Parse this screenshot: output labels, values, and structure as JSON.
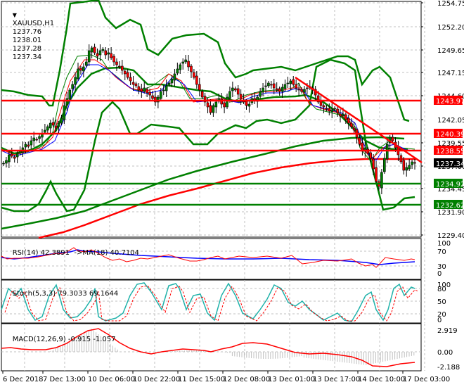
{
  "window": {
    "symbol_label": "XAUUSD,H1",
    "ohlc": {
      "open": "1237.76",
      "high": "1238.01",
      "low": "1237.28",
      "close": "1237.34"
    },
    "menu_icon": "triangle-down-icon"
  },
  "main_pane": {
    "price_ticks": [
      "1254.75",
      "1252.20",
      "1249.65",
      "1247.15",
      "1244.60",
      "1242.05",
      "1239.55",
      "1237.00",
      "1234.45",
      "1231.90",
      "1229.40"
    ],
    "levels": [
      {
        "value": "1243.97",
        "color": "#ff0000",
        "y": 143
      },
      {
        "value": "1240.39",
        "color": "#ff0000",
        "y": 190
      },
      {
        "value": "1238.55",
        "color": "#ff0000",
        "y": 214
      },
      {
        "value": "1234.92",
        "color": "#008000",
        "y": 261
      },
      {
        "value": "1232.62",
        "color": "#008000",
        "y": 291
      }
    ],
    "current_price": {
      "value": "1237.34",
      "color": "#000000",
      "y": 232
    }
  },
  "rsi_pane": {
    "label": "RSI(14) 42.3891",
    "ma_label": "->MA(18) 40.7104",
    "ticks": [
      "100",
      "70",
      "30",
      "0"
    ]
  },
  "stoch_pane": {
    "label": "Stoch(5,3,3) 79.3033 69.1644",
    "ticks": [
      "100",
      "80",
      "50",
      "20",
      "0"
    ]
  },
  "macd_pane": {
    "label": "MACD(12,26,9) -0.915 -1.057",
    "ticks": [
      "2.919",
      "0.00",
      "-2.188"
    ]
  },
  "time_axis": {
    "labels": [
      "6 Dec 2018",
      "7 Dec 13:00",
      "10 Dec 06:00",
      "10 Dec 22:00",
      "11 Dec 15:00",
      "12 Dec 08:00",
      "13 Dec 01:00",
      "13 Dec 17:00",
      "14 Dec 10:00",
      "17 Dec 03:00"
    ]
  },
  "colors": {
    "bull_candle": "#008000",
    "bear_candle": "#ff0000",
    "bollinger": "#008000",
    "ma_fast": "#008000",
    "ma_mid": "#ff0000",
    "ma_slow": "#0000ff",
    "sma200": "#008000",
    "sma_red_long": "#ff0000",
    "trendline": "#ff0000",
    "rsi": "#ff0000",
    "rsi_ma": "#0000ff",
    "stoch_main": "#20b2aa",
    "stoch_signal": "#ff0000",
    "macd_hist": "#c0c0c0",
    "macd_signal": "#ff0000",
    "grid": "#c0c0c0"
  },
  "chart_data": {
    "type": "candlestick",
    "title": "XAUUSD,H1",
    "symbol": "XAUUSD",
    "timeframe": "H1",
    "last_bar": {
      "open": 1237.76,
      "high": 1238.01,
      "low": 1237.28,
      "close": 1237.34
    },
    "x_tick_labels": [
      "6 Dec 2018",
      "7 Dec 13:00",
      "10 Dec 06:00",
      "10 Dec 22:00",
      "11 Dec 15:00",
      "12 Dec 08:00",
      "13 Dec 01:00",
      "13 Dec 17:00",
      "14 Dec 10:00",
      "17 Dec 03:00"
    ],
    "ylim": [
      1229.4,
      1254.75
    ],
    "y_tick_labels": [
      1254.75,
      1252.2,
      1249.65,
      1247.15,
      1244.6,
      1242.05,
      1239.55,
      1237.0,
      1234.45,
      1231.9,
      1229.4
    ],
    "approx_close_path": [
      {
        "t": "6 Dec 2018",
        "price": 1237.0
      },
      {
        "t": "7 Dec 13:00",
        "price": 1243.5
      },
      {
        "t": "7 Dec late",
        "price": 1249.6
      },
      {
        "t": "10 Dec 06:00",
        "price": 1247.0
      },
      {
        "t": "10 Dec 22:00",
        "price": 1244.5
      },
      {
        "t": "11 Dec",
        "price": 1248.2
      },
      {
        "t": "11 Dec 15:00",
        "price": 1243.0
      },
      {
        "t": "12 Dec 08:00",
        "price": 1243.4
      },
      {
        "t": "13 Dec 01:00",
        "price": 1244.8
      },
      {
        "t": "13 Dec 17:00",
        "price": 1242.0
      },
      {
        "t": "14 Dec 10:00",
        "price": 1233.6
      },
      {
        "t": "14 Dec late",
        "price": 1239.8
      },
      {
        "t": "17 Dec 03:00",
        "price": 1237.34
      }
    ],
    "horizontal_levels": [
      {
        "price": 1243.97,
        "color": "red",
        "type": "resistance"
      },
      {
        "price": 1240.39,
        "color": "red",
        "type": "resistance"
      },
      {
        "price": 1238.55,
        "color": "red",
        "type": "resistance"
      },
      {
        "price": 1234.92,
        "color": "green",
        "type": "support"
      },
      {
        "price": 1232.62,
        "color": "green",
        "type": "support"
      }
    ],
    "trendline": {
      "from": {
        "t": "13 Dec 01:00",
        "price": 1245.2
      },
      "to": {
        "t": "17 Dec 03:00",
        "price": 1237.0
      },
      "color": "red"
    },
    "indicators": {
      "bollinger_bands": {
        "color": "green"
      },
      "moving_averages": [
        "green",
        "red",
        "blue"
      ],
      "long_sma_green": {
        "approx_end": 1239.6
      },
      "long_sma_red": {
        "approx_end": 1238.0
      },
      "rsi": {
        "period": 14,
        "value": 42.3891,
        "ma_period": 18,
        "ma_value": 40.7104,
        "levels": [
          0,
          30,
          70,
          100
        ]
      },
      "stochastic": {
        "params": "5,3,3",
        "main": 79.3033,
        "signal": 69.1644,
        "levels": [
          0,
          20,
          50,
          80,
          100
        ]
      },
      "macd": {
        "params": "12,26,9",
        "main": -0.915,
        "signal": -1.057,
        "ylim": [
          -2.188,
          2.919
        ]
      }
    }
  }
}
